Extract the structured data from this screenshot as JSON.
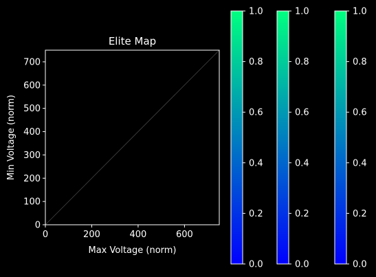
{
  "chart_data": {
    "type": "heatmap",
    "title": "Elite Map",
    "xlabel": "Max Voltage (norm)",
    "ylabel": "Min Voltage (norm)",
    "xlim": [
      0,
      750
    ],
    "ylim": [
      0,
      750
    ],
    "x_ticks": [
      "0",
      "200",
      "400",
      "600"
    ],
    "y_ticks": [
      "0",
      "100",
      "200",
      "300",
      "400",
      "500",
      "600",
      "700"
    ],
    "diagonal_line": {
      "from": [
        0,
        0
      ],
      "to": [
        750,
        750
      ]
    },
    "grid": false,
    "colorbars": [
      {
        "min": 0.0,
        "max": 1.0,
        "ticks": [
          "0.0",
          "0.2",
          "0.4",
          "0.6",
          "0.8",
          "1.0"
        ]
      },
      {
        "min": 0.0,
        "max": 1.0,
        "ticks": [
          "0.0",
          "0.2",
          "0.4",
          "0.6",
          "0.8",
          "1.0"
        ]
      },
      {
        "min": 0.0,
        "max": 1.0,
        "ticks": [
          "0.0",
          "0.2",
          "0.4",
          "0.6",
          "0.8",
          "1.0"
        ]
      }
    ],
    "colormap": {
      "low": "#0000ff",
      "high": "#00ff80"
    }
  },
  "colors": {
    "background": "#000000",
    "foreground": "#ffffff",
    "diagonal": "#444444"
  }
}
